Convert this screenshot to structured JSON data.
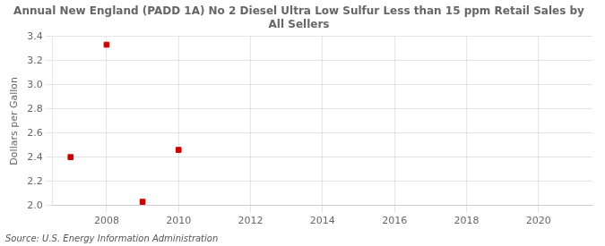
{
  "chart_data": {
    "type": "scatter",
    "title": "Annual New England (PADD 1A) No 2 Diesel Ultra Low Sulfur Less than 15 ppm Retail Sales by\nAll Sellers",
    "ylabel": "Dollars per Gallon",
    "source": "Source: U.S. Energy Information Administration",
    "x": [
      2007,
      2008,
      2009,
      2010
    ],
    "values": [
      2.401,
      3.332,
      2.031,
      2.461
    ],
    "color": "#cc0000",
    "marker": "square",
    "xlim": [
      2006.5,
      2021.5
    ],
    "xticks": [
      2008,
      2010,
      2012,
      2014,
      2016,
      2018,
      2020
    ],
    "ylim": [
      2.0,
      3.4
    ],
    "yticks": [
      {
        "value": 2.0,
        "label": "2.0"
      },
      2.2,
      2.4,
      2.6,
      2.8,
      {
        "value": 3.0,
        "label": "3.0"
      },
      3.2,
      3.4
    ],
    "grid": true
  }
}
